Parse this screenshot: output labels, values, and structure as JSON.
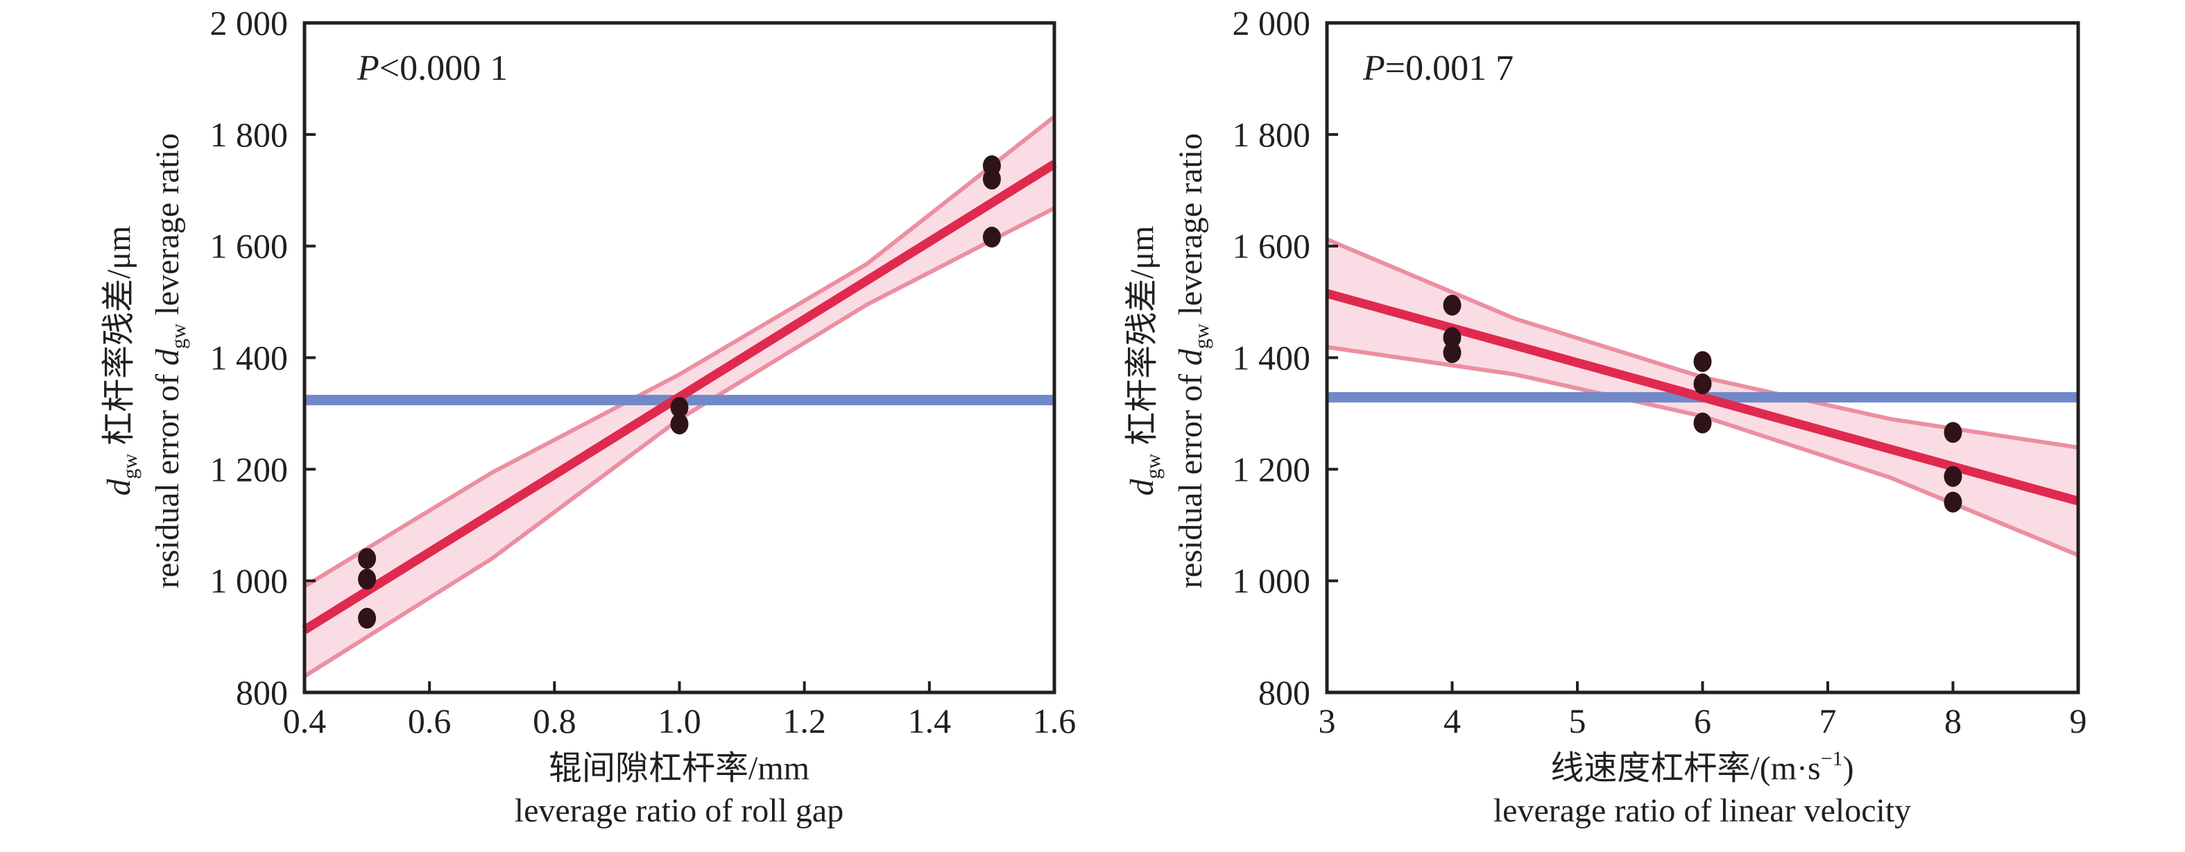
{
  "colors": {
    "axis": "#231f20",
    "fit_line": "#e0294f",
    "band_fill": "#fadde4",
    "band_edge": "#ec8fa1",
    "mean_line": "#7089c9",
    "point": "#2e1419"
  },
  "chart_data": [
    {
      "type": "scatter",
      "panel": "left",
      "annotation": {
        "symbol": "P",
        "text": "<0.000 1"
      },
      "xlabel": {
        "cn": "辊间隙杠杆率/mm",
        "en": "leverage ratio of roll gap"
      },
      "ylabel": {
        "line1_var": "d",
        "line1_sub": "gw",
        "line1_rest": " 杠杆率残差/μm",
        "line2_pre": "residual error of ",
        "line2_var": "d",
        "line2_sub": "gw",
        "line2_post": " leverage ratio"
      },
      "xlim": [
        0.4,
        1.6
      ],
      "ylim": [
        800,
        2000
      ],
      "xticks": [
        0.4,
        0.6,
        0.8,
        1.0,
        1.2,
        1.4,
        1.6
      ],
      "xtick_labels": [
        "0.4",
        "0.6",
        "0.8",
        "1.0",
        "1.2",
        "1.4",
        "1.6"
      ],
      "yticks": [
        800,
        1000,
        1200,
        1400,
        1600,
        1800,
        2000
      ],
      "ytick_labels": [
        "800",
        "1 000",
        "1 200",
        "1 400",
        "1 600",
        "1 800",
        "2 000"
      ],
      "points": [
        {
          "x": 0.5,
          "y": 1040
        },
        {
          "x": 0.5,
          "y": 1003
        },
        {
          "x": 0.5,
          "y": 933
        },
        {
          "x": 1.0,
          "y": 1311
        },
        {
          "x": 1.0,
          "y": 1281
        },
        {
          "x": 1.5,
          "y": 1744
        },
        {
          "x": 1.5,
          "y": 1720
        },
        {
          "x": 1.5,
          "y": 1616
        }
      ],
      "fit": {
        "x": [
          0.4,
          1.6
        ],
        "y": [
          912,
          1747
        ]
      },
      "confidence_band": {
        "x": [
          0.4,
          0.7,
          1.0,
          1.3,
          1.6
        ],
        "upper": [
          990,
          1194,
          1370,
          1568,
          1832
        ],
        "lower": [
          829,
          1040,
          1290,
          1495,
          1668
        ]
      },
      "mean_line": 1324,
      "grid": false
    },
    {
      "type": "scatter",
      "panel": "right",
      "annotation": {
        "symbol": "P",
        "text": "=0.001 7"
      },
      "xlabel": {
        "cn": "线速度杠杆率/(m·s",
        "sup": "−1",
        "cn_close": ")",
        "en": "leverage ratio of linear velocity"
      },
      "ylabel": {
        "line1_var": "d",
        "line1_sub": "gw",
        "line1_rest": " 杠杆率残差/μm",
        "line2_pre": "residual error of ",
        "line2_var": "d",
        "line2_sub": "gw",
        "line2_post": " leverage ratio"
      },
      "xlim": [
        3,
        9
      ],
      "ylim": [
        800,
        2000
      ],
      "xticks": [
        3,
        4,
        5,
        6,
        7,
        8,
        9
      ],
      "xtick_labels": [
        "3",
        "4",
        "5",
        "6",
        "7",
        "8",
        "9"
      ],
      "yticks": [
        800,
        1000,
        1200,
        1400,
        1600,
        1800,
        2000
      ],
      "ytick_labels": [
        "800",
        "1 000",
        "1 200",
        "1 400",
        "1 600",
        "1 800",
        "2 000"
      ],
      "points": [
        {
          "x": 4,
          "y": 1494
        },
        {
          "x": 4,
          "y": 1436
        },
        {
          "x": 4,
          "y": 1409
        },
        {
          "x": 6,
          "y": 1393
        },
        {
          "x": 6,
          "y": 1353
        },
        {
          "x": 6,
          "y": 1283
        },
        {
          "x": 8,
          "y": 1266
        },
        {
          "x": 8,
          "y": 1187
        },
        {
          "x": 8,
          "y": 1141
        }
      ],
      "fit": {
        "x": [
          3,
          9
        ],
        "y": [
          1515,
          1143
        ]
      },
      "confidence_band": {
        "x": [
          3,
          4.5,
          6,
          7.5,
          9
        ],
        "upper": [
          1612,
          1470,
          1365,
          1290,
          1239
        ],
        "lower": [
          1419,
          1370,
          1295,
          1185,
          1046
        ]
      },
      "mean_line": 1329,
      "grid": false
    }
  ]
}
